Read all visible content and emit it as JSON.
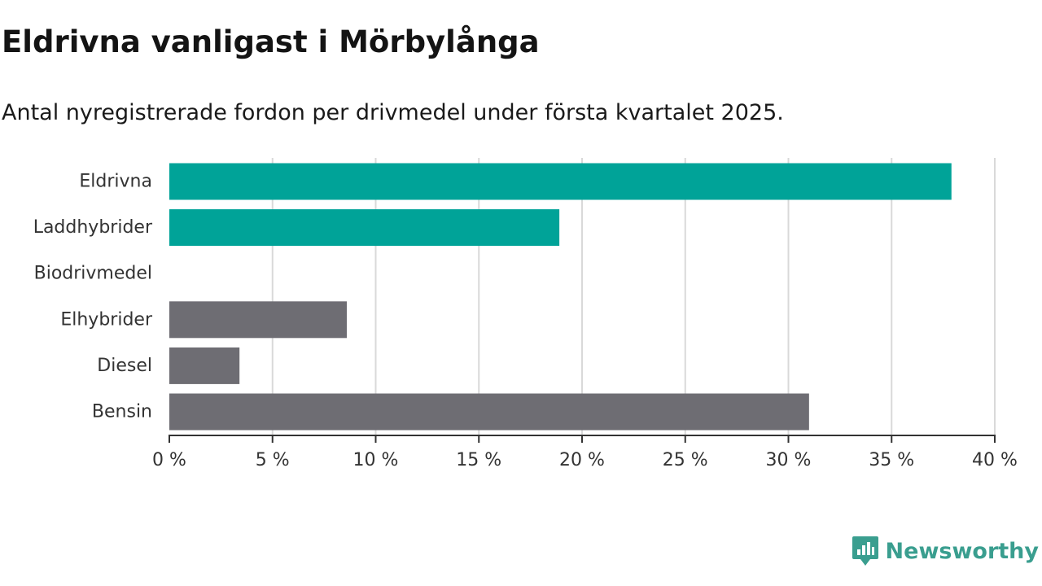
{
  "title": "Eldrivna vanligast i Mörbylånga",
  "subtitle": "Antal nyregistrerade fordon per drivmedel under första kvartalet 2025.",
  "logo": {
    "text": "Newsworthy",
    "icon": "newsworthy-logo-icon"
  },
  "colors": {
    "highlight": "#00a398",
    "default": "#6e6d73",
    "grid": "#d9d9d9",
    "axis": "#333333"
  },
  "chart_data": {
    "type": "bar",
    "orientation": "horizontal",
    "categories": [
      "Eldrivna",
      "Laddhybrider",
      "Biodrivmedel",
      "Elhybrider",
      "Diesel",
      "Bensin"
    ],
    "values": [
      37.9,
      18.9,
      0,
      8.6,
      3.4,
      31.0
    ],
    "highlighted": [
      true,
      true,
      false,
      false,
      false,
      false
    ],
    "xlim": [
      0,
      40
    ],
    "xticks": [
      0,
      5,
      10,
      15,
      20,
      25,
      30,
      35,
      40
    ],
    "xtick_labels": [
      "0 %",
      "5 %",
      "10 %",
      "15 %",
      "20 %",
      "25 %",
      "30 %",
      "35 %",
      "40 %"
    ],
    "grid": true
  }
}
